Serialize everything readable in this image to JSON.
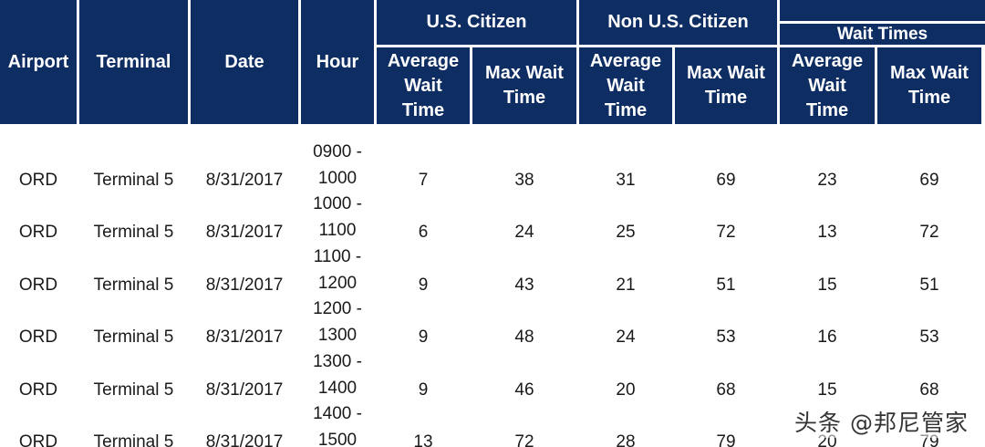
{
  "header": {
    "airport": "Airport",
    "terminal": "Terminal",
    "date": "Date",
    "hour": "Hour",
    "us_citizen": "U.S. Citizen",
    "non_us_citizen": "Non U.S. Citizen",
    "all_group": "",
    "wait_times": "Wait Times",
    "avg_wait_line1": "Average",
    "avg_wait_line2": "Wait",
    "avg_wait_line3": "Time",
    "max_wait_line1": "Max Wait",
    "max_wait_line2": "Time"
  },
  "rows": [
    {
      "airport": "ORD",
      "terminal": "Terminal 5",
      "date": "8/31/2017",
      "hour_start": "0900 -",
      "hour_end": "1000",
      "us_avg": "7",
      "us_max": "38",
      "non_avg": "31",
      "non_max": "69",
      "all_avg": "23",
      "all_max": "69"
    },
    {
      "airport": "ORD",
      "terminal": "Terminal 5",
      "date": "8/31/2017",
      "hour_start": "1000 -",
      "hour_end": "1100",
      "us_avg": "6",
      "us_max": "24",
      "non_avg": "25",
      "non_max": "72",
      "all_avg": "13",
      "all_max": "72"
    },
    {
      "airport": "ORD",
      "terminal": "Terminal 5",
      "date": "8/31/2017",
      "hour_start": "1100 -",
      "hour_end": "1200",
      "us_avg": "9",
      "us_max": "43",
      "non_avg": "21",
      "non_max": "51",
      "all_avg": "15",
      "all_max": "51"
    },
    {
      "airport": "ORD",
      "terminal": "Terminal 5",
      "date": "8/31/2017",
      "hour_start": "1200 -",
      "hour_end": "1300",
      "us_avg": "9",
      "us_max": "48",
      "non_avg": "24",
      "non_max": "53",
      "all_avg": "16",
      "all_max": "53"
    },
    {
      "airport": "ORD",
      "terminal": "Terminal 5",
      "date": "8/31/2017",
      "hour_start": "1300 -",
      "hour_end": "1400",
      "us_avg": "9",
      "us_max": "46",
      "non_avg": "20",
      "non_max": "68",
      "all_avg": "15",
      "all_max": "68"
    },
    {
      "airport": "ORD",
      "terminal": "Terminal 5",
      "date": "8/31/2017",
      "hour_start": "1400 -",
      "hour_end": "1500",
      "us_avg": "13",
      "us_max": "72",
      "non_avg": "28",
      "non_max": "79",
      "all_avg": "20",
      "all_max": "79"
    }
  ],
  "watermark": "头条 @邦尼管家",
  "colors": {
    "header_bg": "#0e2d63",
    "header_text": "#ffffff",
    "body_text": "#1a1a1a"
  }
}
